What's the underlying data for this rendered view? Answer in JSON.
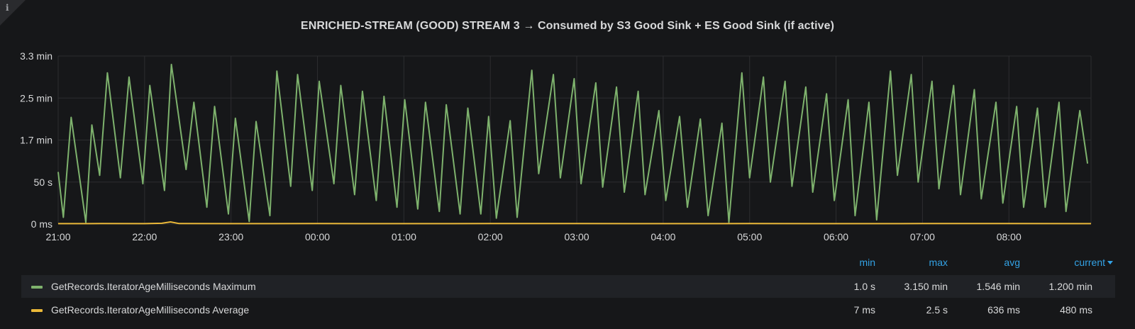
{
  "panel": {
    "title": "ENRICHED-STREAM (GOOD) STREAM 3 → Consumed by S3 Good Sink + ES Good Sink (if active)",
    "info_icon": "info-icon",
    "info_glyph": "i"
  },
  "colors": {
    "background": "#161719",
    "grid": "#2c2d30",
    "green": "#7eb26d",
    "orange": "#eab839",
    "link": "#33a2e5",
    "text": "#d8d9da"
  },
  "chart_data": {
    "type": "line",
    "title": "ENRICHED-STREAM (GOOD) STREAM 3 → Consumed by S3 Good Sink + ES Good Sink (if active)",
    "xlabel": "",
    "ylabel": "",
    "x_unit": "hours since 21:00",
    "x_range": [
      0,
      11.95
    ],
    "y_unit": "seconds",
    "ylim": [
      0,
      200
    ],
    "y_ticks": [
      {
        "value": 0,
        "label": "0 ms"
      },
      {
        "value": 50,
        "label": "50 s"
      },
      {
        "value": 100,
        "label": "1.7 min"
      },
      {
        "value": 150,
        "label": "2.5 min"
      },
      {
        "value": 200,
        "label": "3.3 min"
      }
    ],
    "x_ticks": [
      {
        "value": 0,
        "label": "21:00"
      },
      {
        "value": 1,
        "label": "22:00"
      },
      {
        "value": 2,
        "label": "23:00"
      },
      {
        "value": 3,
        "label": "00:00"
      },
      {
        "value": 4,
        "label": "01:00"
      },
      {
        "value": 5,
        "label": "02:00"
      },
      {
        "value": 6,
        "label": "03:00"
      },
      {
        "value": 7,
        "label": "04:00"
      },
      {
        "value": 8,
        "label": "05:00"
      },
      {
        "value": 9,
        "label": "06:00"
      },
      {
        "value": 10,
        "label": "07:00"
      },
      {
        "value": 11,
        "label": "08:00"
      }
    ],
    "grid": true,
    "series": [
      {
        "name": "GetRecords.IteratorAgeMilliseconds Maximum",
        "color": "#7eb26d",
        "x": [
          0,
          0.06,
          0.15,
          0.32,
          0.39,
          0.48,
          0.57,
          0.72,
          0.82,
          0.98,
          1.06,
          1.23,
          1.31,
          1.48,
          1.57,
          1.72,
          1.81,
          1.97,
          2.05,
          2.21,
          2.29,
          2.45,
          2.53,
          2.69,
          2.77,
          2.94,
          3.02,
          3.19,
          3.27,
          3.43,
          3.52,
          3.68,
          3.77,
          3.92,
          4.01,
          4.16,
          4.25,
          4.41,
          4.49,
          4.65,
          4.74,
          4.89,
          4.98,
          5.07,
          5.23,
          5.31,
          5.48,
          5.56,
          5.73,
          5.81,
          5.97,
          6.05,
          6.22,
          6.3,
          6.46,
          6.55,
          6.71,
          6.79,
          6.95,
          7.03,
          7.19,
          7.28,
          7.43,
          7.52,
          7.68,
          7.76,
          7.91,
          8.0,
          8.16,
          8.24,
          8.41,
          8.49,
          8.65,
          8.73,
          8.89,
          8.98,
          9.14,
          9.22,
          9.38,
          9.47,
          9.63,
          9.71,
          9.87,
          9.95,
          10.11,
          10.19,
          10.36,
          10.44,
          10.6,
          10.68,
          10.85,
          10.93,
          11.09,
          11.17,
          11.33,
          11.42,
          11.58,
          11.66,
          11.82,
          11.91
        ],
        "values": [
          62,
          8,
          127,
          2,
          118,
          58,
          180,
          55,
          175,
          48,
          165,
          40,
          190,
          65,
          145,
          20,
          140,
          12,
          126,
          3,
          122,
          10,
          182,
          45,
          178,
          40,
          170,
          48,
          165,
          35,
          158,
          28,
          152,
          20,
          148,
          18,
          145,
          15,
          142,
          12,
          138,
          12,
          128,
          7,
          123,
          8,
          183,
          60,
          178,
          55,
          173,
          48,
          168,
          44,
          163,
          38,
          158,
          35,
          135,
          28,
          128,
          20,
          125,
          10,
          120,
          2,
          180,
          55,
          175,
          50,
          170,
          45,
          163,
          38,
          155,
          28,
          148,
          10,
          145,
          5,
          182,
          58,
          178,
          50,
          170,
          42,
          165,
          35,
          160,
          30,
          145,
          25,
          140,
          20,
          138,
          20,
          145,
          15,
          135,
          72
        ]
      },
      {
        "name": "GetRecords.IteratorAgeMilliseconds Average",
        "color": "#eab839",
        "x": [
          0,
          0.5,
          1.0,
          1.2,
          1.3,
          1.4,
          2.0,
          3.0,
          4.0,
          5.0,
          6.0,
          7.0,
          8.0,
          9.0,
          10.0,
          11.0,
          11.95
        ],
        "values": [
          0.5,
          0.6,
          0.5,
          0.9,
          2.5,
          0.6,
          0.5,
          0.6,
          0.5,
          0.6,
          0.6,
          0.5,
          0.6,
          0.5,
          0.6,
          0.6,
          0.5
        ]
      }
    ]
  },
  "legend": {
    "headers": {
      "min": "min",
      "max": "max",
      "avg": "avg",
      "current": "current"
    },
    "rows": [
      {
        "name": "GetRecords.IteratorAgeMilliseconds Maximum",
        "color": "#7eb26d",
        "min": "1.0 s",
        "max": "3.150 min",
        "avg": "1.546 min",
        "current": "1.200 min"
      },
      {
        "name": "GetRecords.IteratorAgeMilliseconds Average",
        "color": "#eab839",
        "min": "7 ms",
        "max": "2.5 s",
        "avg": "636 ms",
        "current": "480 ms"
      }
    ]
  }
}
